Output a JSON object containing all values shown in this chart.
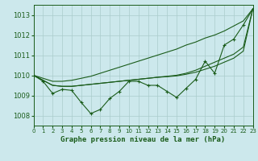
{
  "title": "Graphe pression niveau de la mer (hPa)",
  "background_color": "#cce8ec",
  "grid_color": "#aacccc",
  "line_color": "#1a5c1a",
  "xlim": [
    0,
    23
  ],
  "ylim": [
    1007.5,
    1013.5
  ],
  "yticks": [
    1008,
    1009,
    1010,
    1011,
    1012,
    1013
  ],
  "xticks": [
    0,
    1,
    2,
    3,
    4,
    5,
    6,
    7,
    8,
    9,
    10,
    11,
    12,
    13,
    14,
    15,
    16,
    17,
    18,
    19,
    20,
    21,
    22,
    23
  ],
  "main": [
    1010.0,
    1009.7,
    1009.1,
    1009.3,
    1009.25,
    1008.65,
    1008.1,
    1008.3,
    1008.85,
    1009.2,
    1009.7,
    1009.7,
    1009.5,
    1009.5,
    1009.2,
    1008.9,
    1009.35,
    1009.8,
    1010.7,
    1010.1,
    1011.5,
    1011.8,
    1012.5,
    1013.3
  ],
  "smooth1": [
    1010.0,
    1009.85,
    1009.7,
    1009.7,
    1009.75,
    1009.85,
    1009.95,
    1010.1,
    1010.25,
    1010.4,
    1010.55,
    1010.7,
    1010.85,
    1011.0,
    1011.15,
    1011.3,
    1011.5,
    1011.65,
    1011.85,
    1012.0,
    1012.2,
    1012.45,
    1012.7,
    1013.3
  ],
  "smooth2": [
    1010.0,
    1009.75,
    1009.5,
    1009.45,
    1009.45,
    1009.5,
    1009.55,
    1009.6,
    1009.65,
    1009.7,
    1009.75,
    1009.8,
    1009.85,
    1009.9,
    1009.95,
    1010.0,
    1010.1,
    1010.25,
    1010.45,
    1010.65,
    1010.85,
    1011.05,
    1011.4,
    1013.3
  ],
  "smooth3": [
    1010.0,
    1009.75,
    1009.5,
    1009.45,
    1009.45,
    1009.5,
    1009.55,
    1009.6,
    1009.65,
    1009.7,
    1009.75,
    1009.8,
    1009.85,
    1009.9,
    1009.93,
    1009.97,
    1010.05,
    1010.15,
    1010.3,
    1010.45,
    1010.65,
    1010.85,
    1011.2,
    1013.3
  ]
}
